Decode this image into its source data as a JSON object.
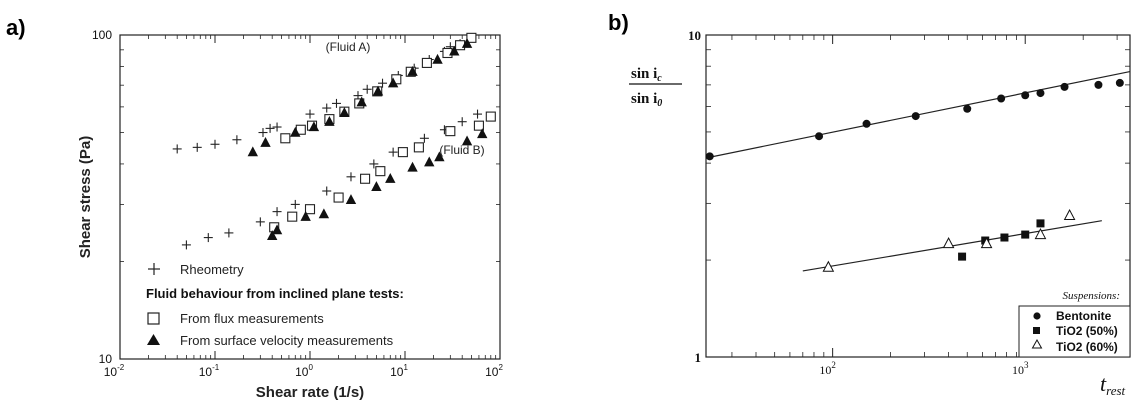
{
  "chart_data": [
    {
      "panel_label": "a)",
      "type": "scatter",
      "xscale": "log",
      "yscale": "log",
      "xlim": [
        0.01,
        100
      ],
      "ylim": [
        10,
        100
      ],
      "xlabel": "Shear rate (1/s)",
      "ylabel": "Shear stress (Pa)",
      "x_ticks": [
        {
          "base": "10",
          "exp": "-2"
        },
        {
          "base": "10",
          "exp": "-1"
        },
        {
          "base": "10",
          "exp": "0"
        },
        {
          "base": "10",
          "exp": "1"
        },
        {
          "base": "10",
          "exp": "2"
        }
      ],
      "y_ticks": [
        "10",
        "100"
      ],
      "annotations": [
        "(Fluid A)",
        "(Fluid B)"
      ],
      "legend": {
        "rheometry": "Rheometry",
        "heading": "Fluid behaviour from inclined plane tests:",
        "flux": "From flux measurements",
        "surface": "From surface velocity measurements"
      },
      "series": [
        {
          "key": "rheometry",
          "marker": "plus",
          "points": [
            [
              0.04,
              44.5
            ],
            [
              0.065,
              45
            ],
            [
              0.1,
              46
            ],
            [
              0.17,
              47.5
            ],
            [
              0.32,
              50
            ],
            [
              0.38,
              51.5
            ],
            [
              0.45,
              52
            ],
            [
              1.0,
              57
            ],
            [
              1.5,
              59.5
            ],
            [
              1.9,
              61.5
            ],
            [
              3.2,
              65
            ],
            [
              4.0,
              68
            ],
            [
              5.8,
              71
            ],
            [
              8.5,
              75
            ],
            [
              12.5,
              79
            ],
            [
              18,
              84
            ],
            [
              26,
              89
            ],
            [
              30,
              92
            ],
            [
              38,
              94
            ],
            [
              0.05,
              22.5
            ],
            [
              0.085,
              23.7
            ],
            [
              0.14,
              24.5
            ],
            [
              0.3,
              26.5
            ],
            [
              0.45,
              28.5
            ],
            [
              0.7,
              30
            ],
            [
              1.5,
              33
            ],
            [
              2.7,
              36.5
            ],
            [
              4.7,
              40
            ],
            [
              7.5,
              43.5
            ],
            [
              16,
              48
            ],
            [
              26,
              51
            ],
            [
              40,
              54
            ],
            [
              58,
              57
            ]
          ]
        },
        {
          "key": "flux",
          "marker": "square",
          "points": [
            [
              0.55,
              48
            ],
            [
              0.8,
              51
            ],
            [
              1.05,
              52.5
            ],
            [
              1.6,
              55
            ],
            [
              2.3,
              58
            ],
            [
              3.3,
              61.5
            ],
            [
              5.1,
              67
            ],
            [
              8.1,
              73
            ],
            [
              11.5,
              77
            ],
            [
              17,
              82
            ],
            [
              28,
              88
            ],
            [
              38,
              93
            ],
            [
              50,
              98
            ],
            [
              0.42,
              25.5
            ],
            [
              0.65,
              27.5
            ],
            [
              1.0,
              29
            ],
            [
              2.0,
              31.5
            ],
            [
              3.8,
              36
            ],
            [
              5.5,
              38
            ],
            [
              9.5,
              43.5
            ],
            [
              14,
              45
            ],
            [
              30,
              50.5
            ],
            [
              60,
              52.5
            ],
            [
              80,
              56
            ]
          ]
        },
        {
          "key": "surface",
          "marker": "triangle",
          "points": [
            [
              0.25,
              43.5
            ],
            [
              0.34,
              46.5
            ],
            [
              0.7,
              50
            ],
            [
              1.1,
              52
            ],
            [
              1.6,
              54
            ],
            [
              2.3,
              57.5
            ],
            [
              3.5,
              62
            ],
            [
              5.2,
              67
            ],
            [
              7.5,
              71
            ],
            [
              12,
              77
            ],
            [
              22,
              84
            ],
            [
              33,
              89
            ],
            [
              45,
              94
            ],
            [
              0.4,
              24
            ],
            [
              0.45,
              25
            ],
            [
              0.9,
              27.5
            ],
            [
              1.4,
              28
            ],
            [
              2.7,
              31
            ],
            [
              5,
              34
            ],
            [
              7,
              36
            ],
            [
              12,
              39
            ],
            [
              18,
              40.5
            ],
            [
              23,
              42
            ],
            [
              45,
              47
            ],
            [
              65,
              49.5
            ]
          ]
        }
      ]
    },
    {
      "panel_label": "b)",
      "type": "scatter",
      "xscale": "log",
      "yscale": "log",
      "xlim": [
        22,
        3500
      ],
      "ylim": [
        1,
        10
      ],
      "xlabel": "t_rest",
      "xlabel_base": "t",
      "xlabel_sub": "rest",
      "ylabel_num": {
        "base": "sin i",
        "sub": "c"
      },
      "ylabel_den": {
        "base": "sin i",
        "sub": "0"
      },
      "x_ticks": [
        {
          "base": "10",
          "exp": "2"
        },
        {
          "base": "10",
          "exp": "3"
        }
      ],
      "y_ticks": [
        "1",
        "10"
      ],
      "legend_title": "Suspensions:",
      "series": [
        {
          "name": "Bentonite",
          "marker": "circle",
          "points": [
            [
              23,
              4.2
            ],
            [
              85,
              4.85
            ],
            [
              150,
              5.3
            ],
            [
              270,
              5.6
            ],
            [
              500,
              5.9
            ],
            [
              750,
              6.35
            ],
            [
              1000,
              6.5
            ],
            [
              1200,
              6.6
            ],
            [
              1600,
              6.9
            ],
            [
              2400,
              7.0
            ],
            [
              3100,
              7.1
            ]
          ],
          "fit": [
            [
              22,
              4.15
            ],
            [
              3500,
              7.7
            ]
          ]
        },
        {
          "name": "TiO2 (50%)",
          "marker": "square",
          "points": [
            [
              470,
              2.05
            ],
            [
              620,
              2.3
            ],
            [
              780,
              2.35
            ],
            [
              1000,
              2.4
            ],
            [
              1200,
              2.6
            ]
          ],
          "fit": [
            [
              70,
              1.85
            ],
            [
              2500,
              2.65
            ]
          ]
        },
        {
          "name": "TiO2 (60%)",
          "marker": "triangle",
          "points": [
            [
              95,
              1.9
            ],
            [
              400,
              2.25
            ],
            [
              630,
              2.25
            ],
            [
              1200,
              2.4
            ],
            [
              1700,
              2.75
            ]
          ]
        }
      ]
    }
  ]
}
